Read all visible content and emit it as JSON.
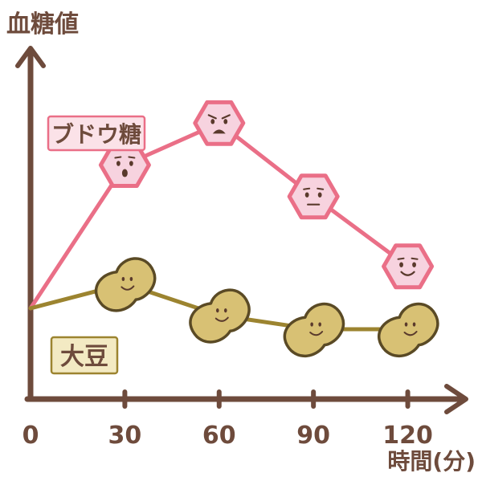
{
  "chart_data": {
    "type": "line",
    "title": "",
    "ylabel": "血糖値",
    "xlabel": "時間(分)",
    "x": [
      0,
      30,
      60,
      90,
      120
    ],
    "x_tick_labels": [
      "0",
      "30",
      "60",
      "90",
      "120"
    ],
    "xlim": [
      0,
      138
    ],
    "ylim": [
      0,
      100
    ],
    "series": [
      {
        "name": "ブドウ糖",
        "values": [
          26,
          67,
          79,
          58,
          38
        ],
        "color": "#ea6f87",
        "marker": "pink-hexagon-face-icon",
        "faces": [
          "surprised",
          "angry",
          "neutral",
          "smile"
        ]
      },
      {
        "name": "大豆",
        "values": [
          26,
          33,
          24,
          20,
          20
        ],
        "color": "#9c8430",
        "marker": "soybean-face-icon",
        "faces": [
          "smile",
          "smile",
          "smile",
          "smile"
        ]
      }
    ],
    "grid": false,
    "legend": "inline labels"
  },
  "colors": {
    "axis": "#6e4b3c",
    "glucose_line": "#ea6f87",
    "glucose_fill": "#f7d3df",
    "glucose_label_fill": "#fbe2e8",
    "soy_line": "#9c8430",
    "soy_fill": "#d8c174",
    "soy_outline": "#5a4a25",
    "soy_label_fill": "#f3eac3",
    "face": "#5a3a2c"
  }
}
